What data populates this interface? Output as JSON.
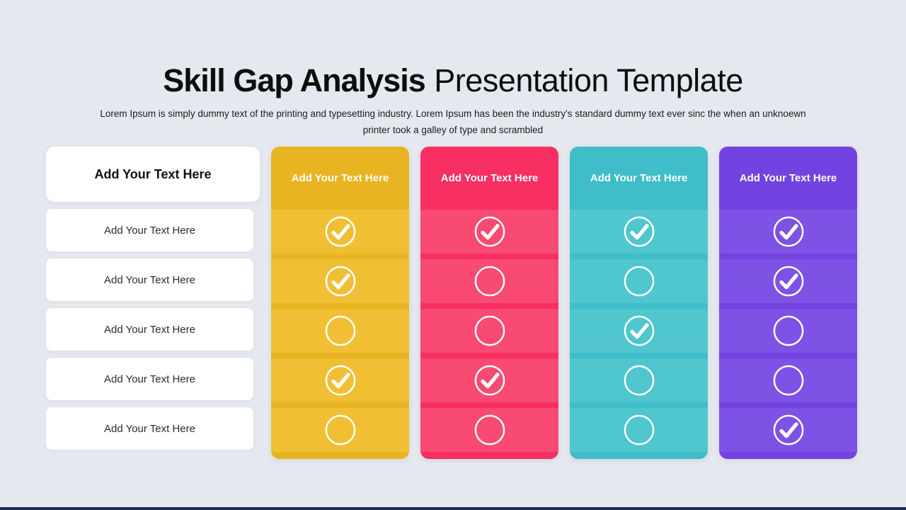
{
  "slide": {
    "background": "#e6e8ef",
    "bottom_bar_color": "#1e2b4e"
  },
  "header": {
    "title_bold": "Skill Gap Analysis",
    "title_regular": "Presentation Template",
    "subtitle_line1": "Lorem Ipsum is simply dummy text of the printing and typesetting industry. Lorem Ipsum has been the industry's standard dummy text ever sinc the when an unknoewn",
    "subtitle_line2": "printer took a galley of type and scrambled"
  },
  "labels_column": {
    "header": "Add Your Text Here",
    "rows": [
      "Add Your Text Here",
      "Add Your Text Here",
      "Add Your Text Here",
      "Add Your Text Here",
      "Add Your Text Here"
    ]
  },
  "columns": [
    {
      "name": "yellow",
      "header": "Add Your Text Here",
      "base_color": "#e9b422",
      "row_color": "#f0bf33",
      "checks": [
        true,
        true,
        false,
        true,
        false
      ]
    },
    {
      "name": "pink",
      "header": "Add Your Text Here",
      "base_color": "#f72f63",
      "row_color": "#f84a72",
      "checks": [
        true,
        false,
        false,
        true,
        false
      ]
    },
    {
      "name": "teal",
      "header": "Add Your Text Here",
      "base_color": "#3fbdc9",
      "row_color": "#50c6ce",
      "checks": [
        true,
        false,
        true,
        false,
        false
      ]
    },
    {
      "name": "purple",
      "header": "Add Your Text Here",
      "base_color": "#7343e1",
      "row_color": "#7d52e4",
      "checks": [
        true,
        true,
        false,
        false,
        true
      ]
    }
  ],
  "icons": {
    "checked": "check-circle-icon",
    "unchecked": "empty-circle-icon"
  }
}
